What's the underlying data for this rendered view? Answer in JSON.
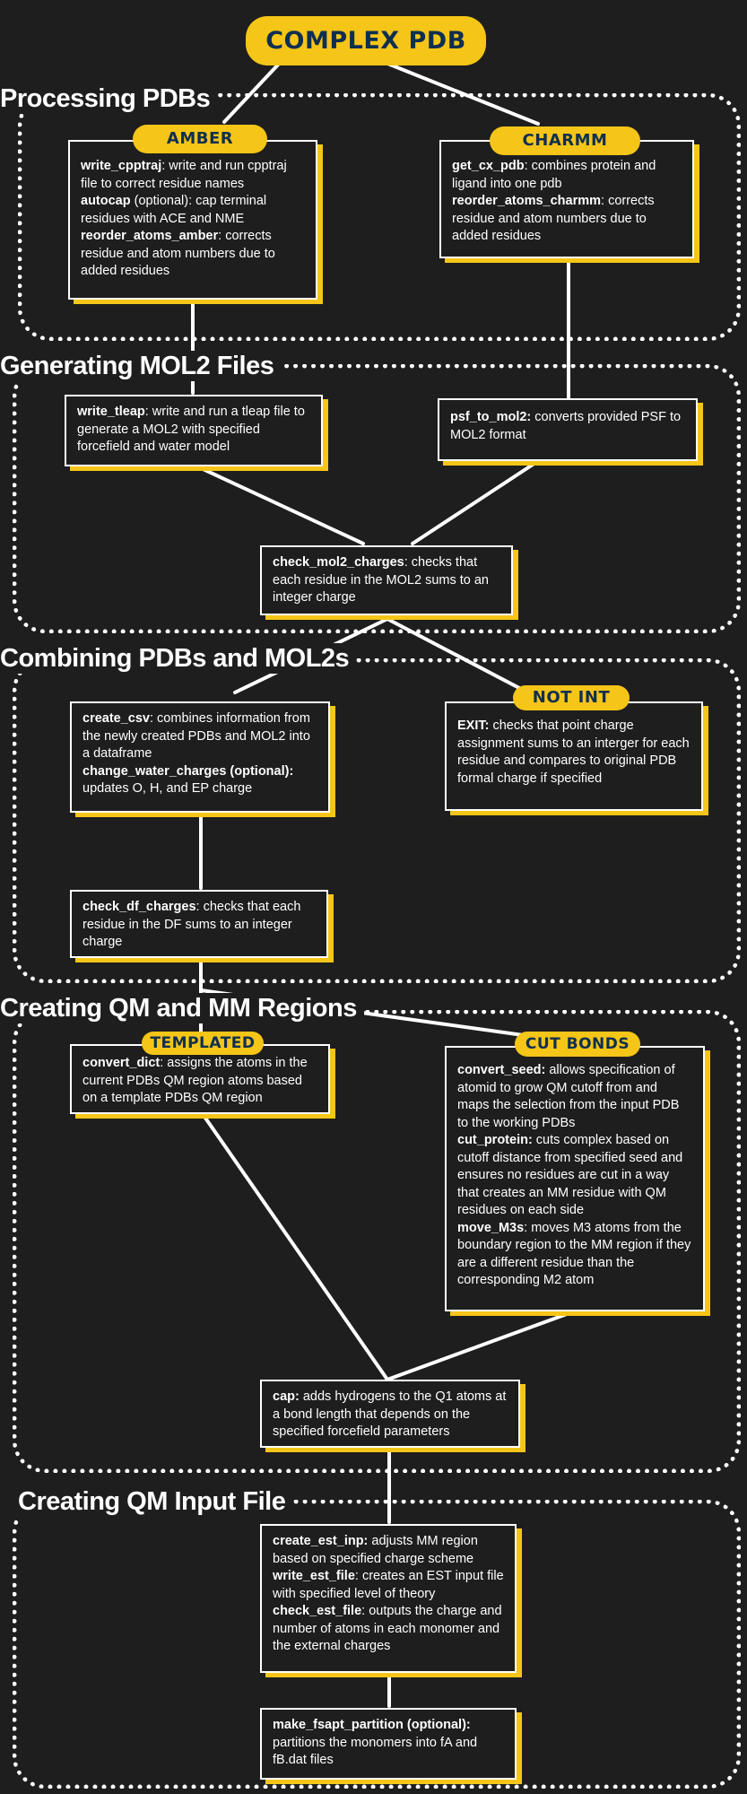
{
  "title": "COMPLEX PDB",
  "colors": {
    "accent": "#f5c518",
    "background": "#1e1e1e",
    "pill_text": "#0f2f4f",
    "line": "#ffffff"
  },
  "sections": {
    "processing": "Processing PDBs",
    "mol2": "Generating MOL2 Files",
    "combining": "Combining PDBs and MOL2s",
    "qmmm": "Creating QM and MM Regions",
    "qminput": "Creating QM Input File"
  },
  "pills": {
    "amber": "AMBER",
    "charmm": "CHARMM",
    "not_int": "NOT INT",
    "templated": "TEMPLATED",
    "cut_bonds": "CUT BONDS"
  },
  "boxes": {
    "amber": [
      {
        "name": "write_cpptraj",
        "text": ": write and run cpptraj file to correct residue names"
      },
      {
        "name": "autocap",
        "text": " (optional): cap terminal residues with ACE and NME"
      },
      {
        "name": "reorder_atoms_amber",
        "text": ": corrects residue and atom numbers due to added residues"
      }
    ],
    "charmm": [
      {
        "name": "get_cx_pdb",
        "text": ": combines protein and ligand into one pdb"
      },
      {
        "name": "reorder_atoms_charmm",
        "text": ": corrects residue and atom numbers due to added residues"
      }
    ],
    "write_tleap": [
      {
        "name": "write_tleap",
        "text": ": write and run a tleap file to generate a MOL2 with specified forcefield and water model"
      }
    ],
    "psf_to_mol2": [
      {
        "name": "psf_to_mol2:",
        "text": " converts provided PSF to MOL2 format"
      }
    ],
    "check_mol2": [
      {
        "name": "check_mol2_charges",
        "text": ": checks that each residue in the MOL2 sums to an integer charge"
      }
    ],
    "create_csv": [
      {
        "name": "create_csv",
        "text": ": combines information from the newly created PDBs and MOL2 into a dataframe"
      },
      {
        "name": "change_water_charges (optional):",
        "text": " updates O, H, and EP charge"
      }
    ],
    "exit": [
      {
        "name": "EXIT:",
        "text": " checks that point charge assignment sums to an interger for each residue and compares to original PDB formal charge if specified"
      }
    ],
    "check_df": [
      {
        "name": "check_df_charges",
        "text": ": checks that each residue in the DF sums to an integer charge"
      }
    ],
    "convert_dict": [
      {
        "name": "convert_dict",
        "text": ": assigns the atoms in the current PDBs QM region atoms based on a template PDBs QM region"
      }
    ],
    "cut_bonds": [
      {
        "name": "convert_seed:",
        "text": " allows specification of atomid to grow QM cutoff from and maps the selection from the input PDB to the working PDBs"
      },
      {
        "name": "cut_protein:",
        "text": " cuts complex based on cutoff distance from specified seed and ensures no residues are cut in a way that creates an MM residue with QM residues on each side"
      },
      {
        "name": "move_M3s",
        "text": ": moves M3 atoms from the boundary region to the MM region if they are a different residue than the corresponding M2 atom"
      }
    ],
    "cap": [
      {
        "name": "cap:",
        "text": " adds hydrogens to the Q1 atoms at a bond length that depends on the specified forcefield parameters"
      }
    ],
    "est": [
      {
        "name": "create_est_inp:",
        "text": " adjusts MM region based on specified charge scheme"
      },
      {
        "name": "write_est_file",
        "text": ": creates an EST input file with specified level of theory"
      },
      {
        "name": "check_est_file",
        "text": ": outputs the charge and number of atoms in each monomer and the external charges"
      }
    ],
    "fsapt": [
      {
        "name": "make_fsapt_partition (optional):",
        "text": " partitions the monomers into fA and fB.dat files"
      }
    ]
  }
}
